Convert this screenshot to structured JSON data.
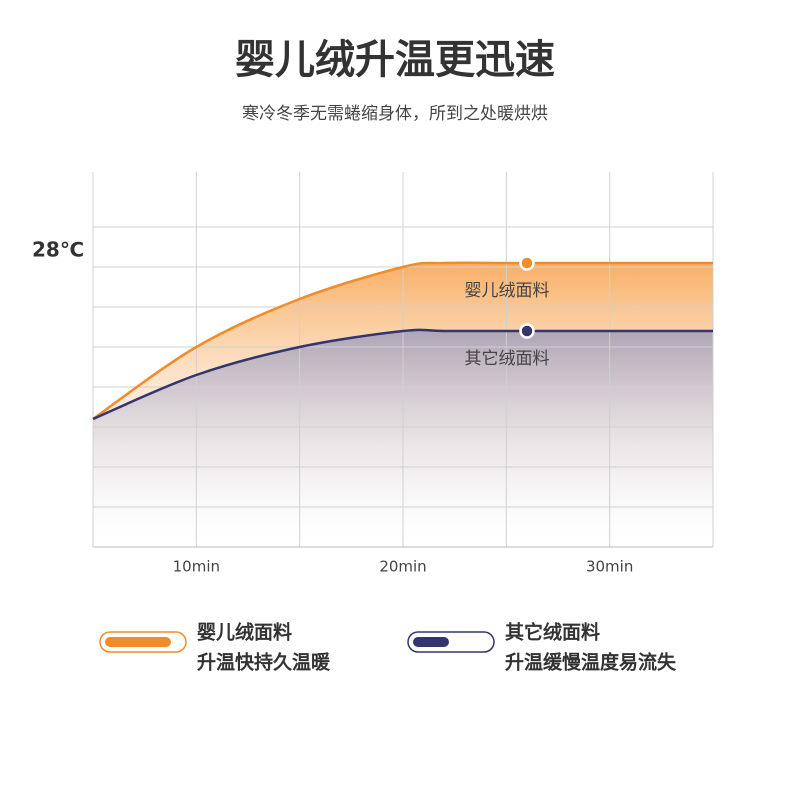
{
  "chart_data": {
    "type": "line",
    "title": "婴儿绒升温更迅速",
    "subtitle": "寒冷冬季无需蜷缩身体，所到之处暖烘烘",
    "x": [
      5,
      10,
      15,
      20,
      22,
      26,
      35
    ],
    "xlim": [
      5,
      35
    ],
    "xticks": [
      {
        "value": 10,
        "label": "10min"
      },
      {
        "value": 20,
        "label": "20min"
      },
      {
        "value": 30,
        "label": "30min"
      }
    ],
    "xgrid": [
      5,
      10,
      15,
      20,
      25,
      30,
      35
    ],
    "ylim": [
      21,
      30.375
    ],
    "yticks": [
      {
        "value": 28,
        "label": "28℃"
      }
    ],
    "ygrid": [
      21,
      22,
      23,
      24,
      25,
      26,
      27,
      28,
      29
    ],
    "grid": true,
    "series": [
      {
        "name": "婴儿绒面料",
        "description": "升温快持久温暖",
        "color": "#f28c28",
        "values": [
          24.2,
          26,
          27.2,
          28,
          28.1,
          28.1,
          28.1
        ]
      },
      {
        "name": "其它绒面料",
        "description": "升温缓慢温度易流失",
        "color": "#34356f",
        "values": [
          24.2,
          25.3,
          26,
          26.4,
          26.4,
          26.4,
          26.4
        ]
      }
    ]
  }
}
